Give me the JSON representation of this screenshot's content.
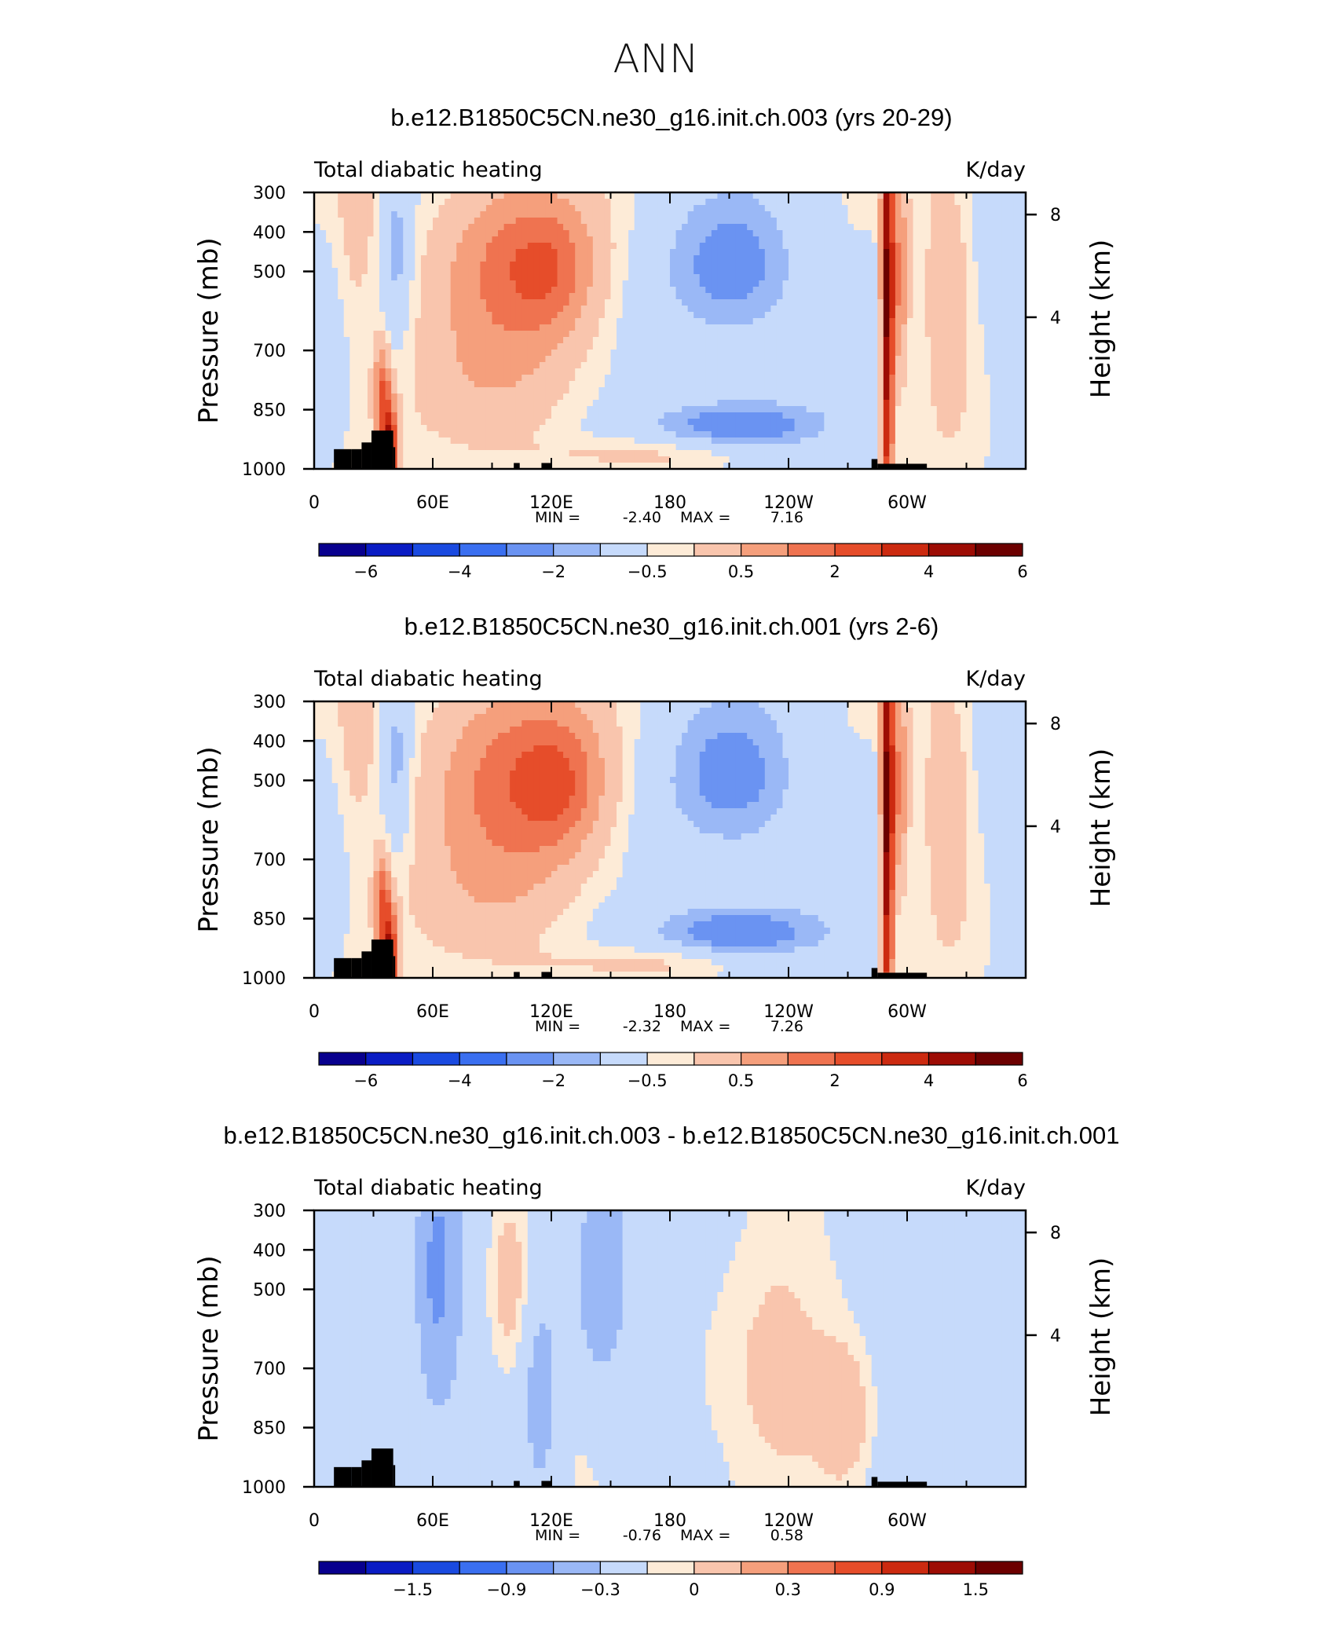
{
  "page_title": "ANN",
  "colormap": [
    "#08008e",
    "#0a1cc4",
    "#1a4ae0",
    "#3a6ff0",
    "#6a93f2",
    "#9ab8f6",
    "#c6dafb",
    "#fdebd7",
    "#f9c5ad",
    "#f59f7c",
    "#ef7350",
    "#e64d2a",
    "#cc2a10",
    "#9d0c04",
    "#6c0000"
  ],
  "terrain_color": "#000000",
  "chart_data": [
    {
      "type": "heatmap",
      "title": "b.e12.B1850C5CN.ne30_g16.init.ch.003 (yrs 20-29)",
      "variable": "Total diabatic heating",
      "units": "K/day",
      "ylabel": "Pressure (mb)",
      "y2label": "Height (km)",
      "yticks": [
        300,
        400,
        500,
        700,
        850,
        1000
      ],
      "y2ticks": [
        8,
        4
      ],
      "xticks": [
        "0",
        "60E",
        "120E",
        "180",
        "120W",
        "60W"
      ],
      "xlim": [
        0,
        360
      ],
      "ylim": [
        300,
        1000
      ],
      "stats": {
        "min_label": "MIN =",
        "min": "-2.40",
        "max_label": "MAX =",
        "max": "7.16"
      },
      "levels_labels": [
        "-6",
        "-4",
        "-2",
        "-0.5",
        "0.5",
        "2",
        "4",
        "6"
      ],
      "features": [
        {
          "lon": 22,
          "plev": 320,
          "width": 10,
          "depth": 350,
          "value": 1.2
        },
        {
          "lon": 38,
          "plev": 950,
          "width": 4,
          "depth": 130,
          "value": 5.5
        },
        {
          "lon": 34,
          "plev": 800,
          "width": 4,
          "depth": 120,
          "value": 3.0
        },
        {
          "lon": 42,
          "plev": 450,
          "width": 7,
          "depth": 220,
          "value": -1.2
        },
        {
          "lon": 100,
          "plev": 480,
          "width": 42,
          "depth": 240,
          "value": 2.6
        },
        {
          "lon": 120,
          "plev": 500,
          "width": 22,
          "depth": 150,
          "value": 1.6
        },
        {
          "lon": 95,
          "plev": 800,
          "width": 40,
          "depth": 200,
          "value": 1.2
        },
        {
          "lon": 215,
          "plev": 500,
          "width": 36,
          "depth": 200,
          "value": -1.7
        },
        {
          "lon": 210,
          "plev": 890,
          "width": 45,
          "depth": 70,
          "value": -2.0
        },
        {
          "lon": 290,
          "plev": 600,
          "width": 3,
          "depth": 600,
          "value": 6.8
        },
        {
          "lon": 296,
          "plev": 520,
          "width": 5,
          "depth": 260,
          "value": 2.8
        },
        {
          "lon": 320,
          "plev": 560,
          "width": 12,
          "depth": 300,
          "value": 1.8
        },
        {
          "lon": 180,
          "plev": 960,
          "width": 70,
          "depth": 40,
          "value": 0.8
        },
        {
          "lon": 350,
          "plev": 600,
          "width": 8,
          "depth": 300,
          "value": -0.7
        },
        {
          "lon": 8,
          "plev": 870,
          "width": 5,
          "depth": 70,
          "value": -0.7
        }
      ]
    },
    {
      "type": "heatmap",
      "title": "b.e12.B1850C5CN.ne30_g16.init.ch.001 (yrs 2-6)",
      "variable": "Total diabatic heating",
      "units": "K/day",
      "ylabel": "Pressure (mb)",
      "y2label": "Height (km)",
      "yticks": [
        300,
        400,
        500,
        700,
        850,
        1000
      ],
      "y2ticks": [
        8,
        4
      ],
      "xticks": [
        "0",
        "60E",
        "120E",
        "180",
        "120W",
        "60W"
      ],
      "xlim": [
        0,
        360
      ],
      "ylim": [
        300,
        1000
      ],
      "stats": {
        "min_label": "MIN =",
        "min": "-2.32",
        "max_label": "MAX =",
        "max": "7.26"
      },
      "levels_labels": [
        "-6",
        "-4",
        "-2",
        "-0.5",
        "0.5",
        "2",
        "4",
        "6"
      ],
      "features": [
        {
          "lon": 22,
          "plev": 320,
          "width": 10,
          "depth": 350,
          "value": 1.2
        },
        {
          "lon": 38,
          "plev": 950,
          "width": 4,
          "depth": 130,
          "value": 5.6
        },
        {
          "lon": 34,
          "plev": 800,
          "width": 4,
          "depth": 120,
          "value": 3.0
        },
        {
          "lon": 42,
          "plev": 450,
          "width": 7,
          "depth": 220,
          "value": -1.3
        },
        {
          "lon": 100,
          "plev": 480,
          "width": 45,
          "depth": 250,
          "value": 2.8
        },
        {
          "lon": 125,
          "plev": 520,
          "width": 22,
          "depth": 160,
          "value": 2.0
        },
        {
          "lon": 95,
          "plev": 800,
          "width": 40,
          "depth": 200,
          "value": 1.2
        },
        {
          "lon": 215,
          "plev": 500,
          "width": 36,
          "depth": 210,
          "value": -1.7
        },
        {
          "lon": 210,
          "plev": 885,
          "width": 45,
          "depth": 75,
          "value": -2.0
        },
        {
          "lon": 290,
          "plev": 600,
          "width": 3,
          "depth": 600,
          "value": 6.9
        },
        {
          "lon": 296,
          "plev": 520,
          "width": 5,
          "depth": 260,
          "value": 2.8
        },
        {
          "lon": 320,
          "plev": 560,
          "width": 12,
          "depth": 300,
          "value": 1.8
        },
        {
          "lon": 180,
          "plev": 960,
          "width": 70,
          "depth": 40,
          "value": 0.8
        },
        {
          "lon": 350,
          "plev": 600,
          "width": 8,
          "depth": 300,
          "value": -0.7
        },
        {
          "lon": 8,
          "plev": 870,
          "width": 5,
          "depth": 70,
          "value": -0.7
        }
      ]
    },
    {
      "type": "heatmap",
      "title": "b.e12.B1850C5CN.ne30_g16.init.ch.003 - b.e12.B1850C5CN.ne30_g16.init.ch.001",
      "variable": "Total diabatic heating",
      "units": "K/day",
      "ylabel": "Pressure (mb)",
      "y2label": "Height (km)",
      "yticks": [
        300,
        400,
        500,
        700,
        850,
        1000
      ],
      "y2ticks": [
        8,
        4
      ],
      "xticks": [
        "0",
        "60E",
        "120E",
        "180",
        "120W",
        "60W"
      ],
      "xlim": [
        0,
        360
      ],
      "ylim": [
        300,
        1000
      ],
      "stats": {
        "min_label": "MIN =",
        "min": "-0.76",
        "max_label": "MAX =",
        "max": "0.58"
      },
      "levels_labels": [
        "-1.5",
        "-0.9",
        "-0.3",
        "0",
        "0.3",
        "0.9",
        "1.5"
      ],
      "features": [
        {
          "lon": 62,
          "plev": 450,
          "width": 10,
          "depth": 300,
          "value": -0.55
        },
        {
          "lon": 145,
          "plev": 470,
          "width": 14,
          "depth": 280,
          "value": -0.5
        },
        {
          "lon": 98,
          "plev": 480,
          "width": 12,
          "depth": 250,
          "value": 0.3
        },
        {
          "lon": 215,
          "plev": 700,
          "width": 60,
          "depth": 350,
          "value": 0.15
        },
        {
          "lon": 270,
          "plev": 820,
          "width": 15,
          "depth": 200,
          "value": 0.25
        },
        {
          "lon": 345,
          "plev": 550,
          "width": 14,
          "depth": 300,
          "value": -0.25
        },
        {
          "lon": 20,
          "plev": 600,
          "width": 10,
          "depth": 300,
          "value": -0.2
        },
        {
          "lon": 115,
          "plev": 750,
          "width": 10,
          "depth": 300,
          "value": -0.35
        }
      ]
    }
  ]
}
